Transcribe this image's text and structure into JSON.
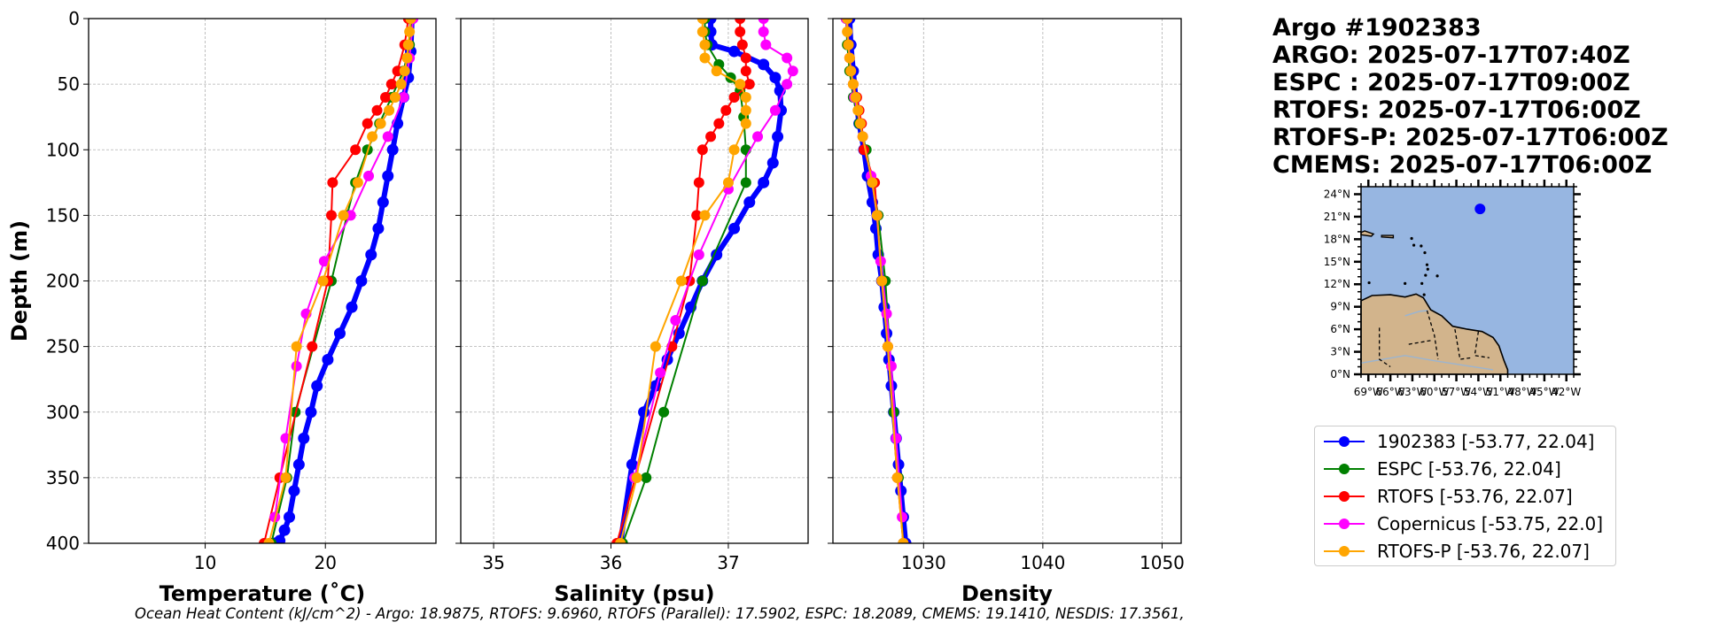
{
  "info": {
    "title": "Argo #1902383",
    "argo": "ARGO: 2025-07-17T07:40Z",
    "espc": "ESPC : 2025-07-17T09:00Z",
    "rtofs": "RTOFS: 2025-07-17T06:00Z",
    "rtofs_p": "RTOFS-P: 2025-07-17T06:00Z",
    "cmems": "CMEMS: 2025-07-17T06:00Z"
  },
  "footer": "Ocean Heat Content (kJ/cm^2) - Argo: 18.9875,  RTOFS: 9.6960,  RTOFS (Parallel): 17.5902,  ESPC: 18.2089,  CMEMS: 19.1410,  NESDIS: 17.3561,",
  "colors": {
    "argo": "#0000ff",
    "espc": "#008000",
    "rtofs": "#ff0000",
    "copernicus": "#ff00ff",
    "rtofs_p": "#ffa500",
    "ocean": "#97b6e1",
    "land": "#d2b48c"
  },
  "legend": [
    {
      "label": "1902383 [-53.77, 22.04]",
      "color": "#0000ff"
    },
    {
      "label": "ESPC [-53.76, 22.04]",
      "color": "#008000"
    },
    {
      "label": "RTOFS [-53.76, 22.07]",
      "color": "#ff0000"
    },
    {
      "label": "Copernicus [-53.75, 22.0]",
      "color": "#ff00ff"
    },
    {
      "label": "RTOFS-P [-53.76, 22.07]",
      "color": "#ffa500"
    }
  ],
  "map": {
    "lat_labels": [
      "24°N",
      "21°N",
      "18°N",
      "15°N",
      "12°N",
      "9°N",
      "6°N",
      "3°N",
      "0°N"
    ],
    "lon_labels": [
      "69°W",
      "66°W",
      "63°W",
      "60°W",
      "57°W",
      "54°W",
      "51°W",
      "48°W",
      "45°W",
      "42°W"
    ],
    "lon_range": [
      -70,
      -41
    ],
    "lat_range": [
      0,
      25
    ],
    "float_position": {
      "lon": -53.77,
      "lat": 22.04
    }
  },
  "chart_data": [
    {
      "type": "line",
      "xlabel": "Temperature (˚C)",
      "ylabel": "Depth (m)",
      "xlim": [
        0.3,
        29.2
      ],
      "ylim": [
        400,
        0
      ],
      "xticks": [
        10,
        20
      ],
      "yticks": [
        0,
        50,
        100,
        150,
        200,
        250,
        300,
        350,
        400
      ],
      "series": [
        {
          "name": "1902383",
          "color": "#0000ff",
          "marker_size": 6.5,
          "x": [
            27.2,
            27.1,
            26.9,
            26.5,
            26.0,
            25.6,
            25.2,
            24.8,
            24.4,
            23.8,
            23.0,
            22.2,
            21.2,
            20.2,
            19.3,
            18.8,
            18.2,
            17.8,
            17.4,
            17.0,
            16.6,
            16.2,
            15.8
          ],
          "y": [
            0,
            25,
            45,
            60,
            80,
            100,
            120,
            140,
            160,
            180,
            200,
            220,
            240,
            260,
            280,
            300,
            320,
            340,
            360,
            380,
            390,
            398,
            400
          ]
        },
        {
          "name": "ESPC",
          "color": "#008000",
          "marker_size": 6,
          "x": [
            27.2,
            27.0,
            26.5,
            25.5,
            24.5,
            23.5,
            22.5,
            21.8,
            20.5,
            17.5,
            16.8,
            15.5
          ],
          "y": [
            0,
            20,
            40,
            60,
            80,
            100,
            125,
            150,
            200,
            300,
            350,
            400
          ]
        },
        {
          "name": "RTOFS",
          "color": "#ff0000",
          "marker_size": 6,
          "x": [
            26.9,
            26.6,
            26.0,
            25.5,
            25.0,
            24.3,
            23.5,
            22.5,
            20.6,
            20.5,
            20.2,
            18.9,
            16.2,
            14.9
          ],
          "y": [
            0,
            20,
            40,
            50,
            60,
            70,
            80,
            100,
            125,
            150,
            200,
            250,
            350,
            400
          ]
        },
        {
          "name": "Copernicus",
          "color": "#ff00ff",
          "marker_size": 6,
          "x": [
            27.3,
            27.0,
            26.5,
            25.2,
            23.6,
            22.1,
            19.9,
            18.4,
            17.6,
            16.7,
            15.8
          ],
          "y": [
            0,
            30,
            60,
            90,
            120,
            150,
            185,
            225,
            265,
            320,
            380
          ]
        },
        {
          "name": "RTOFS-P",
          "color": "#ffa500",
          "marker_size": 6,
          "x": [
            27.1,
            27.0,
            26.9,
            26.8,
            26.6,
            26.3,
            25.8,
            25.3,
            24.6,
            23.9,
            22.7,
            21.5,
            19.8,
            17.6,
            16.7,
            15.3
          ],
          "y": [
            0,
            10,
            20,
            30,
            40,
            50,
            60,
            70,
            80,
            90,
            125,
            150,
            200,
            250,
            350,
            400
          ]
        }
      ]
    },
    {
      "type": "line",
      "xlabel": "Salinity (psu)",
      "xlim": [
        34.72,
        37.68
      ],
      "ylim": [
        400,
        0
      ],
      "xticks": [
        35,
        36,
        37
      ],
      "series": [
        {
          "name": "1902383",
          "color": "#0000ff",
          "marker_size": 6.5,
          "x": [
            36.85,
            36.85,
            36.86,
            37.05,
            37.3,
            37.4,
            37.44,
            37.45,
            37.42,
            37.38,
            37.3,
            37.18,
            37.05,
            36.9,
            36.78,
            36.68,
            36.58,
            36.48,
            36.38,
            36.28,
            36.18,
            36.08
          ],
          "y": [
            0,
            10,
            20,
            25,
            35,
            45,
            55,
            70,
            90,
            110,
            125,
            140,
            160,
            180,
            200,
            220,
            240,
            260,
            280,
            300,
            340,
            400
          ]
        },
        {
          "name": "ESPC",
          "color": "#008000",
          "marker_size": 6,
          "x": [
            36.8,
            36.8,
            36.82,
            36.92,
            37.02,
            37.1,
            37.13,
            37.15,
            37.15,
            36.78,
            36.45,
            36.3,
            36.1
          ],
          "y": [
            0,
            10,
            20,
            35,
            45,
            55,
            75,
            100,
            125,
            200,
            300,
            350,
            400
          ]
        },
        {
          "name": "RTOFS",
          "color": "#ff0000",
          "marker_size": 6,
          "x": [
            37.1,
            37.1,
            37.12,
            37.15,
            37.15,
            37.18,
            37.05,
            36.98,
            36.92,
            36.85,
            36.78,
            36.75,
            36.73,
            36.67,
            36.52,
            36.05
          ],
          "y": [
            0,
            10,
            20,
            30,
            40,
            50,
            60,
            70,
            80,
            90,
            100,
            125,
            150,
            200,
            250,
            400
          ]
        },
        {
          "name": "Copernicus",
          "color": "#ff00ff",
          "marker_size": 6,
          "x": [
            37.3,
            37.3,
            37.32,
            37.5,
            37.55,
            37.5,
            37.4,
            37.25,
            37.0,
            36.75,
            36.55,
            36.42,
            36.2
          ],
          "y": [
            0,
            10,
            20,
            30,
            40,
            50,
            70,
            90,
            130,
            180,
            230,
            270,
            350
          ]
        },
        {
          "name": "RTOFS-P",
          "color": "#ffa500",
          "marker_size": 6,
          "x": [
            36.78,
            36.78,
            36.8,
            36.8,
            36.9,
            37.1,
            37.15,
            37.15,
            37.15,
            37.05,
            37.0,
            36.8,
            36.6,
            36.38,
            36.22,
            36.08
          ],
          "y": [
            0,
            10,
            20,
            30,
            40,
            50,
            60,
            70,
            80,
            100,
            125,
            150,
            200,
            250,
            350,
            400
          ]
        }
      ]
    },
    {
      "type": "line",
      "xlabel": "Density",
      "xlim": [
        1022.4,
        1051.6
      ],
      "ylim": [
        400,
        0
      ],
      "xticks": [
        1030,
        1040,
        1050
      ],
      "series": [
        {
          "name": "1902383",
          "color": "#0000ff",
          "marker_size": 6.5,
          "x": [
            1023.8,
            1023.9,
            1024.1,
            1024.3,
            1024.6,
            1025.0,
            1025.3,
            1025.7,
            1026.0,
            1026.2,
            1026.5,
            1026.7,
            1026.9,
            1027.1,
            1027.3,
            1027.5,
            1027.7,
            1027.9,
            1028.1,
            1028.3,
            1028.5
          ],
          "y": [
            0,
            20,
            40,
            60,
            80,
            100,
            120,
            140,
            160,
            180,
            200,
            220,
            240,
            260,
            280,
            300,
            320,
            340,
            360,
            380,
            400
          ]
        },
        {
          "name": "ESPC",
          "color": "#008000",
          "marker_size": 6,
          "x": [
            1023.5,
            1023.6,
            1023.8,
            1024.1,
            1024.6,
            1025.2,
            1025.7,
            1026.2,
            1026.8,
            1027.5,
            1027.9,
            1028.3
          ],
          "y": [
            0,
            20,
            40,
            60,
            80,
            100,
            125,
            150,
            200,
            300,
            350,
            400
          ]
        },
        {
          "name": "RTOFS",
          "color": "#ff0000",
          "marker_size": 6,
          "x": [
            1023.6,
            1023.7,
            1023.9,
            1024.1,
            1024.4,
            1024.6,
            1024.8,
            1025.0,
            1025.9,
            1026.1,
            1026.5,
            1027.0,
            1027.8,
            1028.3
          ],
          "y": [
            0,
            20,
            40,
            50,
            60,
            70,
            80,
            100,
            125,
            150,
            200,
            250,
            350,
            400
          ]
        },
        {
          "name": "Copernicus",
          "color": "#ff00ff",
          "marker_size": 6,
          "x": [
            1023.5,
            1023.8,
            1024.2,
            1024.9,
            1025.6,
            1026.1,
            1026.4,
            1026.9,
            1027.3,
            1027.7,
            1028.2
          ],
          "y": [
            0,
            30,
            60,
            90,
            120,
            150,
            185,
            225,
            265,
            320,
            380
          ]
        },
        {
          "name": "RTOFS-P",
          "color": "#ffa500",
          "marker_size": 6,
          "x": [
            1023.6,
            1023.6,
            1023.7,
            1023.8,
            1023.9,
            1024.1,
            1024.3,
            1024.5,
            1024.7,
            1024.9,
            1025.7,
            1026.1,
            1026.5,
            1027.0,
            1027.8,
            1028.3
          ],
          "y": [
            0,
            10,
            20,
            30,
            40,
            50,
            60,
            70,
            80,
            90,
            125,
            150,
            200,
            250,
            350,
            400
          ]
        }
      ]
    }
  ]
}
